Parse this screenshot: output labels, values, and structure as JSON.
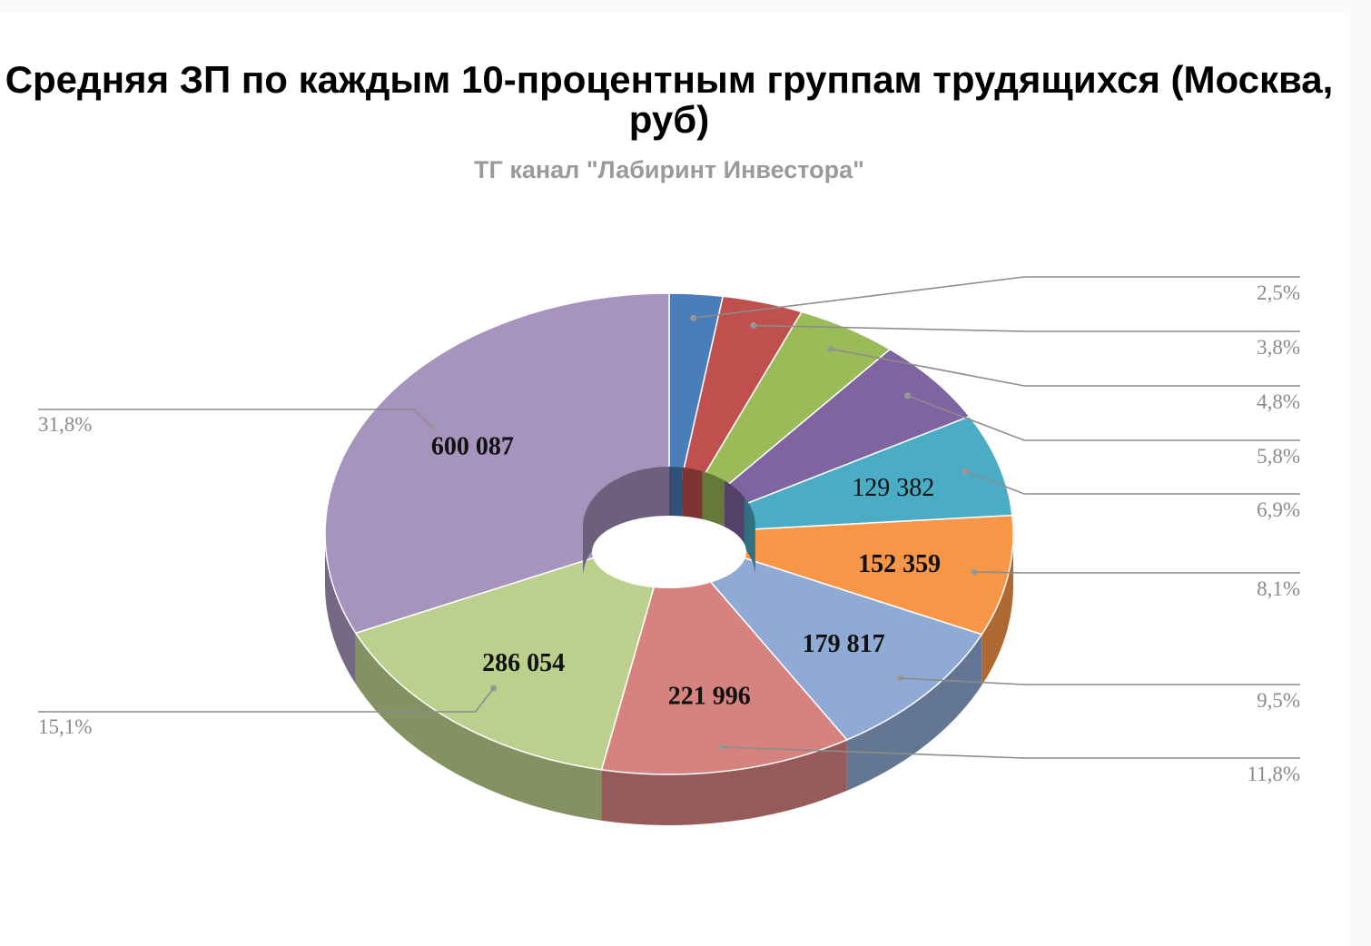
{
  "chart_data": {
    "type": "pie",
    "style": "3d-doughnut",
    "title": "Средняя ЗП по каждым 10-процентным группам трудящихся (Москва, руб)",
    "subtitle": "ТГ канал \"Лабиринт Инвестора\"",
    "slices": [
      {
        "percent": 2.5,
        "percent_label": "2,5%",
        "value_label": "",
        "color": "#4a7ebb"
      },
      {
        "percent": 3.8,
        "percent_label": "3,8%",
        "value_label": "",
        "color": "#c0504d"
      },
      {
        "percent": 4.8,
        "percent_label": "4,8%",
        "value_label": "",
        "color": "#9bbb59"
      },
      {
        "percent": 5.8,
        "percent_label": "5,8%",
        "value_label": "",
        "color": "#8064a2"
      },
      {
        "percent": 6.9,
        "percent_label": "6,9%",
        "value_label": "129 382",
        "color": "#4bacc6"
      },
      {
        "percent": 8.1,
        "percent_label": "8,1%",
        "value_label": "152 359",
        "color": "#f79646"
      },
      {
        "percent": 9.5,
        "percent_label": "9,5%",
        "value_label": "179 817",
        "color": "#8eaad5"
      },
      {
        "percent": 11.8,
        "percent_label": "11,8%",
        "value_label": "221 996",
        "color": "#d6827e"
      },
      {
        "percent": 15.1,
        "percent_label": "15,1%",
        "value_label": "286 054",
        "color": "#bcd08e"
      },
      {
        "percent": 31.8,
        "percent_label": "31,8%",
        "value_label": "600 087",
        "color": "#a794be"
      }
    ]
  }
}
